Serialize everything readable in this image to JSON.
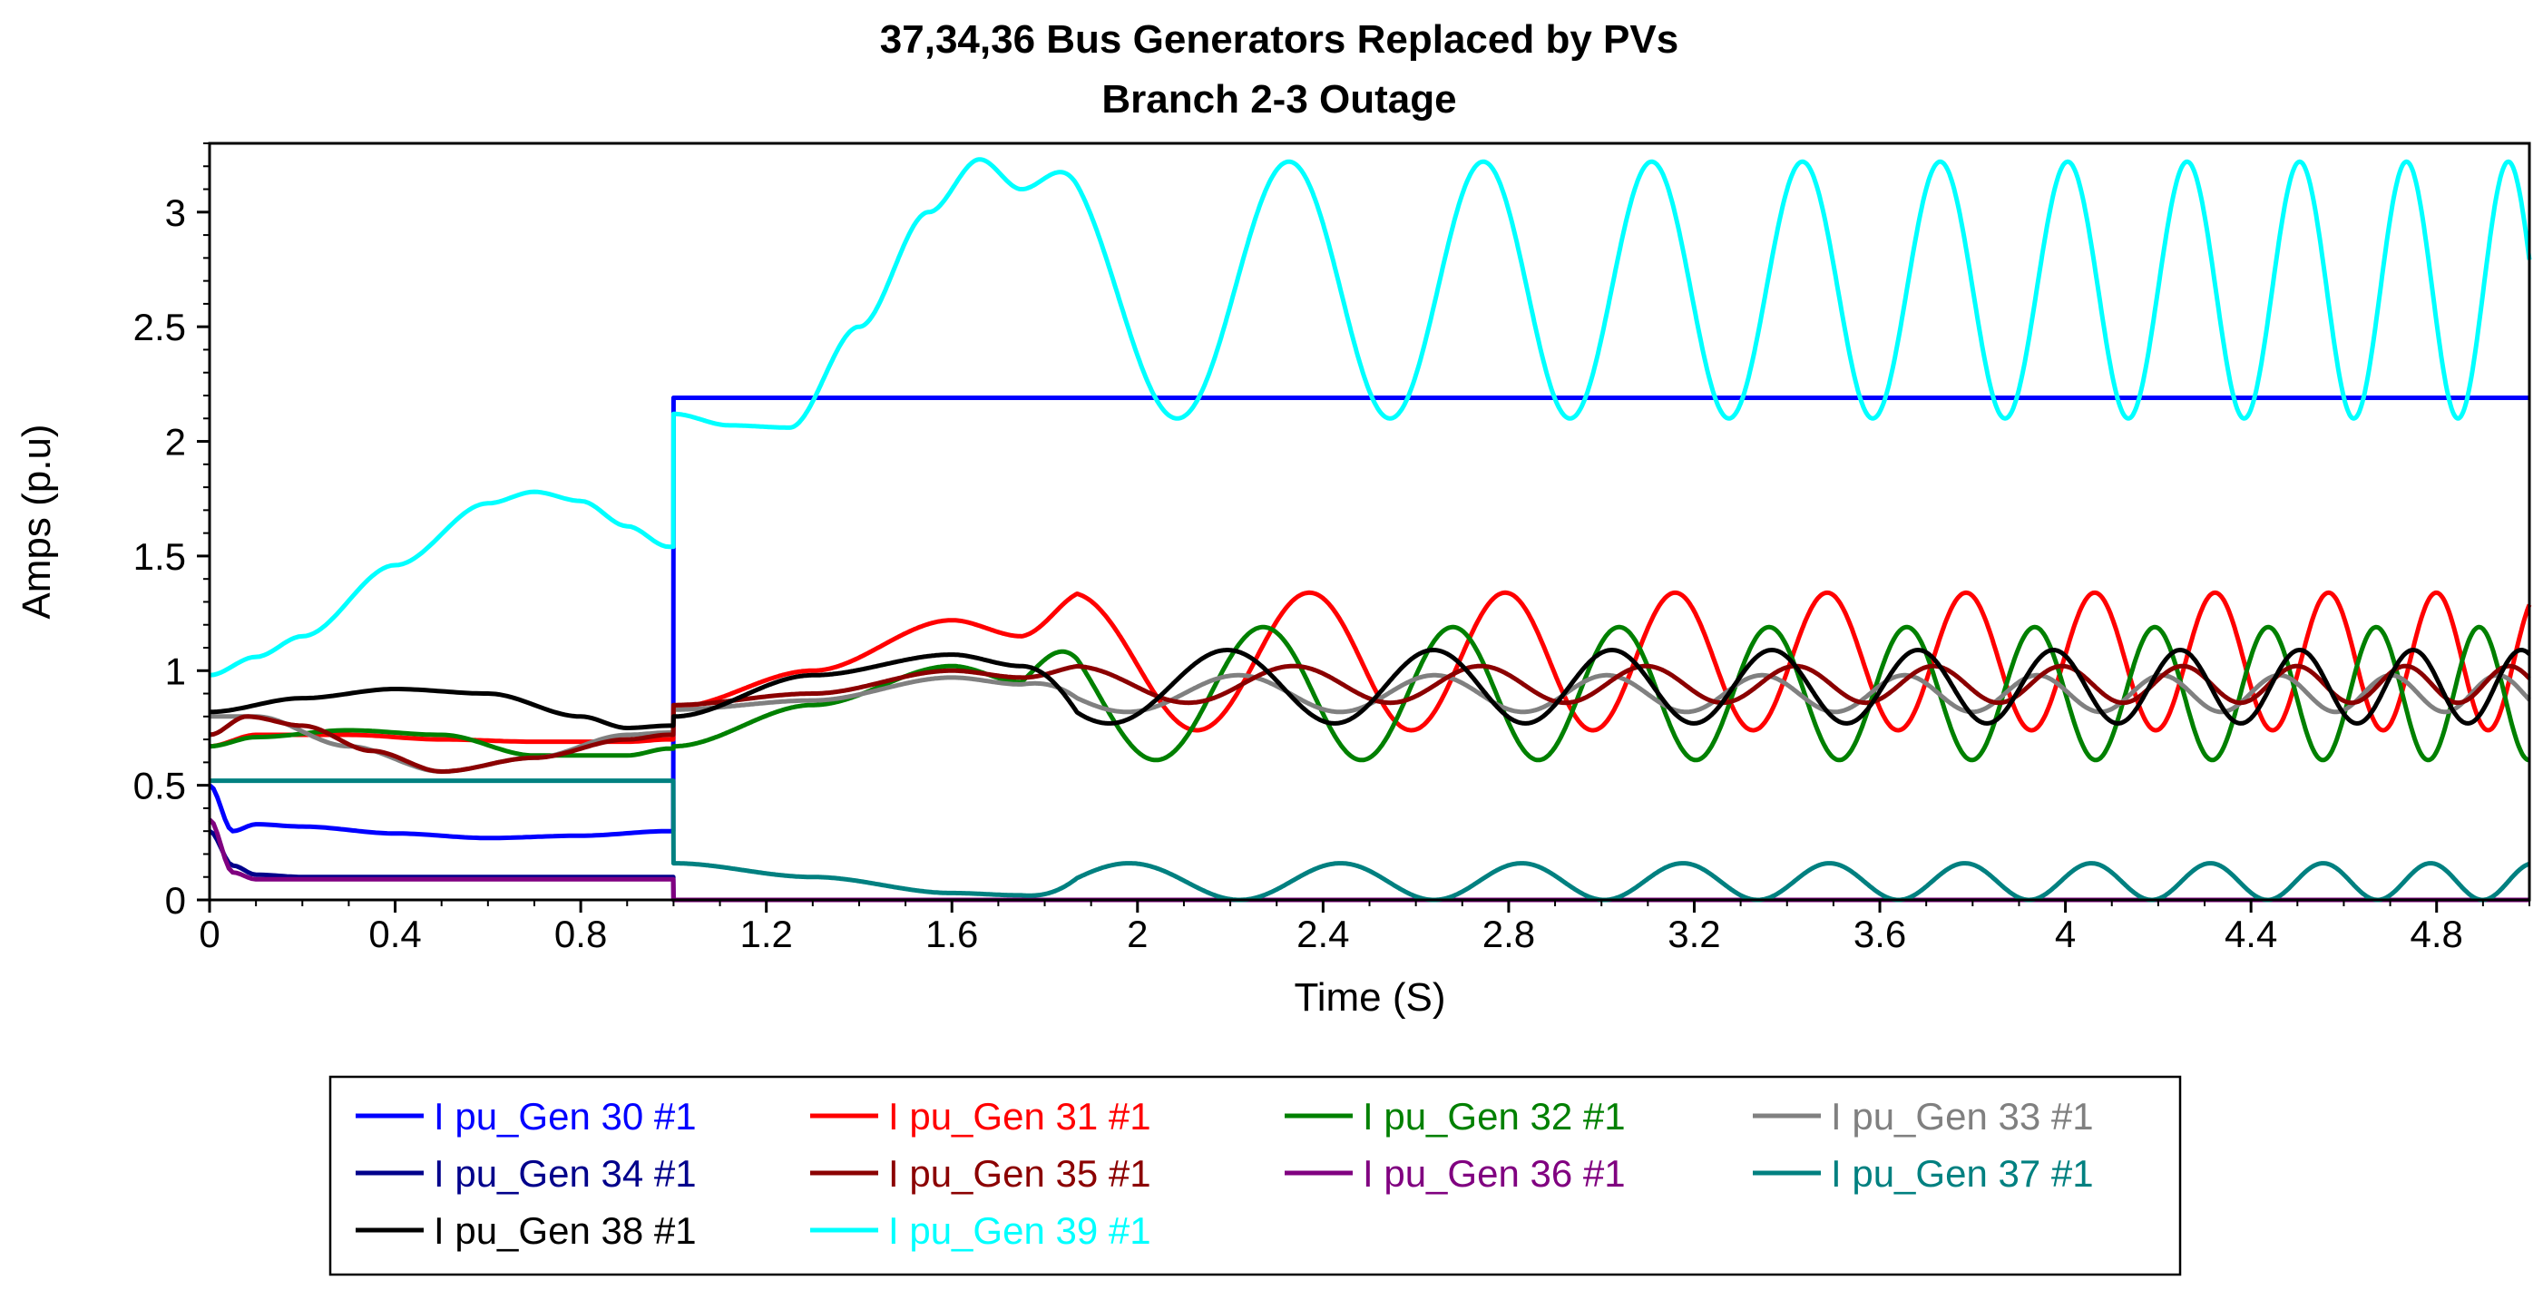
{
  "chart_data": {
    "type": "line",
    "title": "37,34,36  Bus Generators Replaced by PVs",
    "subtitle": "Branch 2-3 Outage",
    "xlabel": "Time (S)",
    "ylabel": "Amps (p.u)",
    "xlim": [
      0,
      5
    ],
    "ylim": [
      0,
      3.3
    ],
    "xticks": [
      "0",
      "0.4",
      "0.8",
      "1.2",
      "1.6",
      "2",
      "2.4",
      "2.8",
      "3.2",
      "3.6",
      "4",
      "4.4",
      "4.8"
    ],
    "xtick_values": [
      0,
      0.4,
      0.8,
      1.2,
      1.6,
      2,
      2.4,
      2.8,
      3.2,
      3.6,
      4,
      4.4,
      4.8
    ],
    "yticks": [
      "0",
      "0.5",
      "1",
      "1.5",
      "2",
      "2.5",
      "3"
    ],
    "ytick_values": [
      0,
      0.5,
      1,
      1.5,
      2,
      2.5,
      3
    ],
    "grid": false,
    "legend_position": "bottom",
    "disturbance_time": 1.0,
    "series": [
      {
        "name": "I pu_Gen 30 #1",
        "color": "#0000ff",
        "pre": {
          "x": [
            0,
            0.05,
            0.1,
            0.2,
            0.4,
            0.6,
            0.8,
            0.99
          ],
          "y": [
            0.5,
            0.3,
            0.33,
            0.32,
            0.29,
            0.27,
            0.28,
            0.3
          ]
        },
        "post": {
          "base": 2.19,
          "amp": 0,
          "f0": 0,
          "f1": 0,
          "decay_to": 0
        }
      },
      {
        "name": "I pu_Gen 31 #1",
        "color": "#ff0000",
        "pre": {
          "x": [
            0,
            0.1,
            0.3,
            0.5,
            0.7,
            0.9,
            0.99
          ],
          "y": [
            0.67,
            0.72,
            0.72,
            0.7,
            0.69,
            0.69,
            0.7
          ]
        },
        "post": {
          "base": 1.04,
          "amp": 0.3,
          "f0": 1.6,
          "f1": 4.6,
          "phase": 0.5,
          "x": [
            1.0,
            1.3,
            1.6,
            1.75
          ],
          "y": [
            0.84,
            1.0,
            1.22,
            1.15
          ]
        }
      },
      {
        "name": "I pu_Gen 32 #1",
        "color": "#008000",
        "pre": {
          "x": [
            0,
            0.1,
            0.3,
            0.5,
            0.7,
            0.9,
            0.99
          ],
          "y": [
            0.67,
            0.71,
            0.74,
            0.72,
            0.63,
            0.63,
            0.66
          ]
        },
        "post": {
          "base": 0.9,
          "amp": 0.29,
          "f0": 1.8,
          "f1": 4.7,
          "phase": 1.2,
          "x": [
            1.0,
            1.3,
            1.6,
            1.75
          ],
          "y": [
            0.67,
            0.85,
            1.02,
            0.95
          ]
        }
      },
      {
        "name": "I pu_Gen 33 #1",
        "color": "#808080",
        "pre": {
          "x": [
            0,
            0.1,
            0.3,
            0.5,
            0.7,
            0.9,
            0.99
          ],
          "y": [
            0.8,
            0.8,
            0.67,
            0.56,
            0.62,
            0.72,
            0.73
          ]
        },
        "post": {
          "base": 0.9,
          "amp": 0.08,
          "f0": 1.8,
          "f1": 4.5,
          "phase": 2.0,
          "x": [
            1.0,
            1.3,
            1.6,
            1.75
          ],
          "y": [
            0.83,
            0.87,
            0.97,
            0.94
          ]
        }
      },
      {
        "name": "I pu_Gen 34 #1",
        "color": "#00008b",
        "pre": {
          "x": [
            0,
            0.05,
            0.1,
            0.2,
            0.5,
            0.99
          ],
          "y": [
            0.3,
            0.15,
            0.11,
            0.1,
            0.1,
            0.1
          ]
        },
        "post": {
          "base": 0.0,
          "amp": 0,
          "f0": 0,
          "f1": 0
        }
      },
      {
        "name": "I pu_Gen 35 #1",
        "color": "#8b0000",
        "pre": {
          "x": [
            0,
            0.08,
            0.2,
            0.35,
            0.5,
            0.7,
            0.9,
            0.99
          ],
          "y": [
            0.72,
            0.8,
            0.76,
            0.65,
            0.56,
            0.62,
            0.7,
            0.72
          ]
        },
        "post": {
          "base": 0.94,
          "amp": 0.08,
          "f0": 1.8,
          "f1": 4.6,
          "phase": 0.3,
          "x": [
            1.0,
            1.3,
            1.6,
            1.75
          ],
          "y": [
            0.85,
            0.9,
            1.0,
            0.97
          ]
        }
      },
      {
        "name": "I pu_Gen 36 #1",
        "color": "#800080",
        "pre": {
          "x": [
            0,
            0.05,
            0.1,
            0.2,
            0.5,
            0.99
          ],
          "y": [
            0.35,
            0.12,
            0.09,
            0.09,
            0.09,
            0.09
          ]
        },
        "post": {
          "base": 0.0,
          "amp": 0,
          "f0": 0,
          "f1": 0
        }
      },
      {
        "name": "I pu_Gen 37 #1",
        "color": "#008080",
        "pre": {
          "x": [
            0,
            0.99
          ],
          "y": [
            0.52,
            0.52
          ]
        },
        "post": {
          "base": 0.08,
          "amp": 0.08,
          "f0": 1.8,
          "f1": 4.6,
          "phase": -1.2,
          "x": [
            1.0,
            1.3,
            1.6,
            1.75
          ],
          "y": [
            0.16,
            0.1,
            0.03,
            0.02
          ]
        }
      },
      {
        "name": "I pu_Gen 38 #1",
        "color": "#000000",
        "pre": {
          "x": [
            0,
            0.2,
            0.4,
            0.6,
            0.8,
            0.9,
            0.99
          ],
          "y": [
            0.82,
            0.88,
            0.92,
            0.9,
            0.8,
            0.75,
            0.76
          ]
        },
        "post": {
          "base": 0.93,
          "amp": 0.16,
          "f0": 1.7,
          "f1": 4.4,
          "phase": 2.6,
          "x": [
            1.0,
            1.3,
            1.6,
            1.75
          ],
          "y": [
            0.8,
            0.98,
            1.07,
            1.02
          ]
        }
      },
      {
        "name": "I pu_Gen 39 #1",
        "color": "#00ffff",
        "pre": {
          "x": [
            0,
            0.1,
            0.2,
            0.4,
            0.6,
            0.7,
            0.8,
            0.9,
            0.99
          ],
          "y": [
            0.98,
            1.06,
            1.15,
            1.46,
            1.73,
            1.78,
            1.74,
            1.63,
            1.54
          ]
        },
        "post": {
          "base": 2.66,
          "amp": 0.56,
          "f0": 1.65,
          "f1": 4.7,
          "phase": 0.9,
          "x": [
            1.0,
            1.12,
            1.25,
            1.4,
            1.55,
            1.66,
            1.75
          ],
          "y": [
            2.12,
            2.07,
            2.06,
            2.5,
            3.0,
            3.23,
            3.1
          ]
        }
      }
    ]
  }
}
